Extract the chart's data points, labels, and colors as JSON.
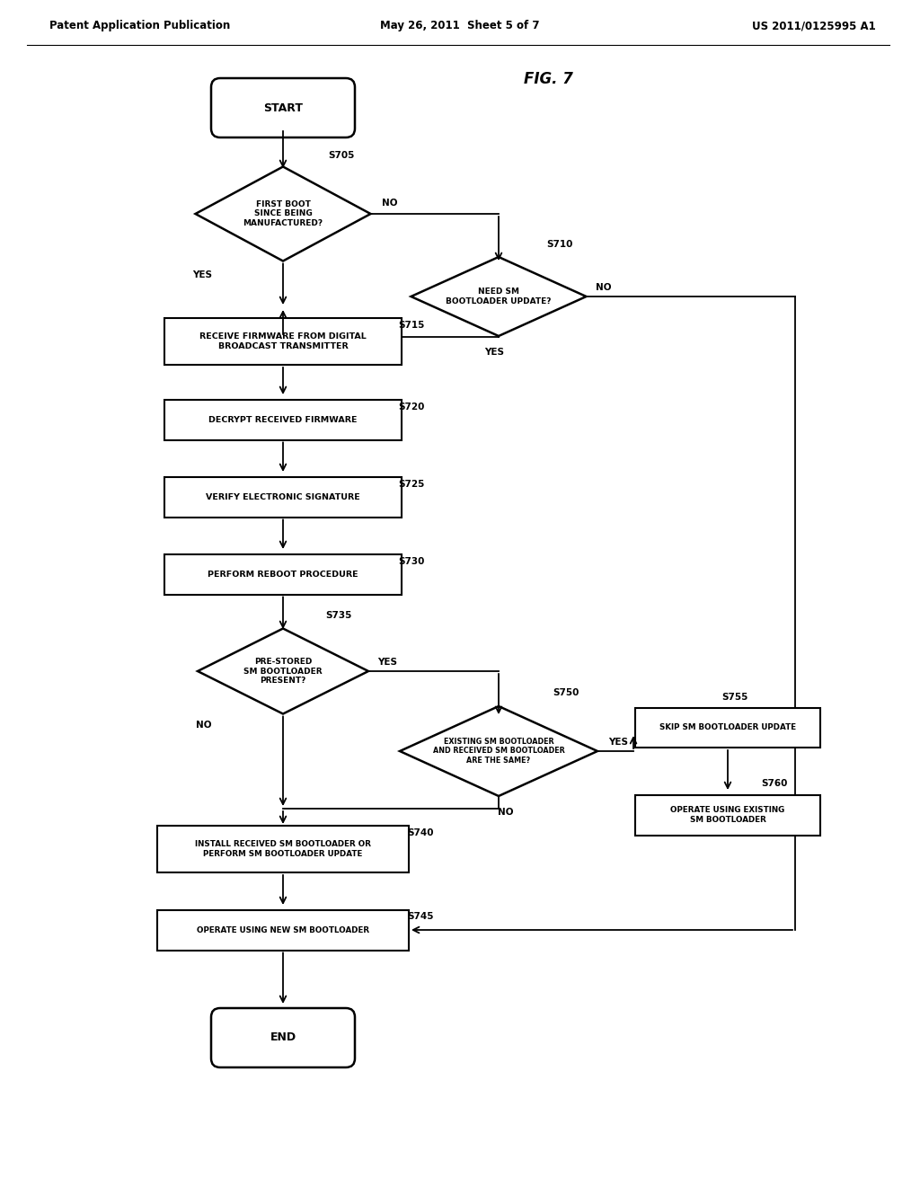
{
  "bg": "#ffffff",
  "header_left": "Patent Application Publication",
  "header_center": "May 26, 2011  Sheet 5 of 7",
  "header_right": "US 2011/0125995 A1",
  "fig_label": "FIG. 7",
  "fig_width": 10.24,
  "fig_height": 13.2,
  "dpi": 100
}
